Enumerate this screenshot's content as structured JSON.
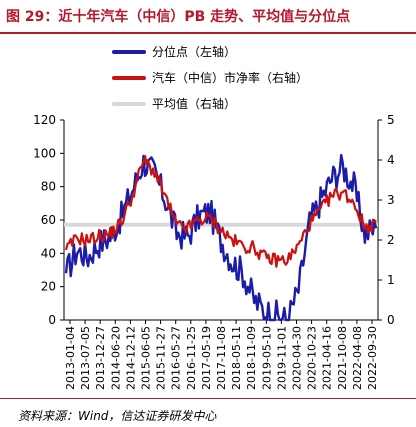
{
  "header": {
    "title": "图 29：近十年汽车（中信）PB 走势、平均值与分位点"
  },
  "footer": {
    "source": "资料来源：Wind，信达证券研发中心"
  },
  "colors": {
    "percentile": "#1c1ca8",
    "pb": "#cc1111",
    "avg": "#d9d9d9",
    "accent": "#b5182b"
  },
  "chart_data": {
    "type": "line",
    "x_ticks": [
      "2013-01-04",
      "2013-07-05",
      "2013-12-27",
      "2014-06-20",
      "2014-12-12",
      "2015-06-05",
      "2015-11-27",
      "2016-05-27",
      "2016-11-25",
      "2017-05-19",
      "2017-11-08",
      "2018-05-11",
      "2018-11-09",
      "2019-05-10",
      "2019-11-01",
      "2020-04-30",
      "2020-10-23",
      "2021-04-16",
      "2021-10-08",
      "2022-04-08",
      "2022-09-30"
    ],
    "y_left": {
      "ticks": [
        0,
        20,
        40,
        60,
        80,
        100,
        120
      ],
      "range": [
        0,
        120
      ]
    },
    "y_right": {
      "ticks": [
        0,
        1,
        2,
        3,
        4,
        5
      ],
      "range": [
        0,
        5
      ]
    },
    "series": [
      {
        "name": "分位点（左轴）",
        "axis": "left",
        "values": [
          28,
          42,
          38,
          46,
          50,
          62,
          78,
          95,
          88,
          72,
          52,
          50,
          62,
          65,
          48,
          35,
          28,
          12,
          5,
          3,
          0,
          18,
          58,
          72,
          85,
          92,
          80,
          52,
          55
        ]
      },
      {
        "name": "汽车（中信）市净率（右轴）",
        "axis": "right",
        "values": [
          1.75,
          2.05,
          2.0,
          2.1,
          2.15,
          2.45,
          3.1,
          4.0,
          3.7,
          3.05,
          2.35,
          2.3,
          2.5,
          2.55,
          2.25,
          2.0,
          1.85,
          1.8,
          1.55,
          1.5,
          1.5,
          1.85,
          2.4,
          2.75,
          3.1,
          3.2,
          2.95,
          2.3,
          2.45
        ]
      },
      {
        "name": "平均值（右轴）",
        "axis": "right",
        "values": [
          2.38,
          2.38
        ]
      }
    ]
  }
}
